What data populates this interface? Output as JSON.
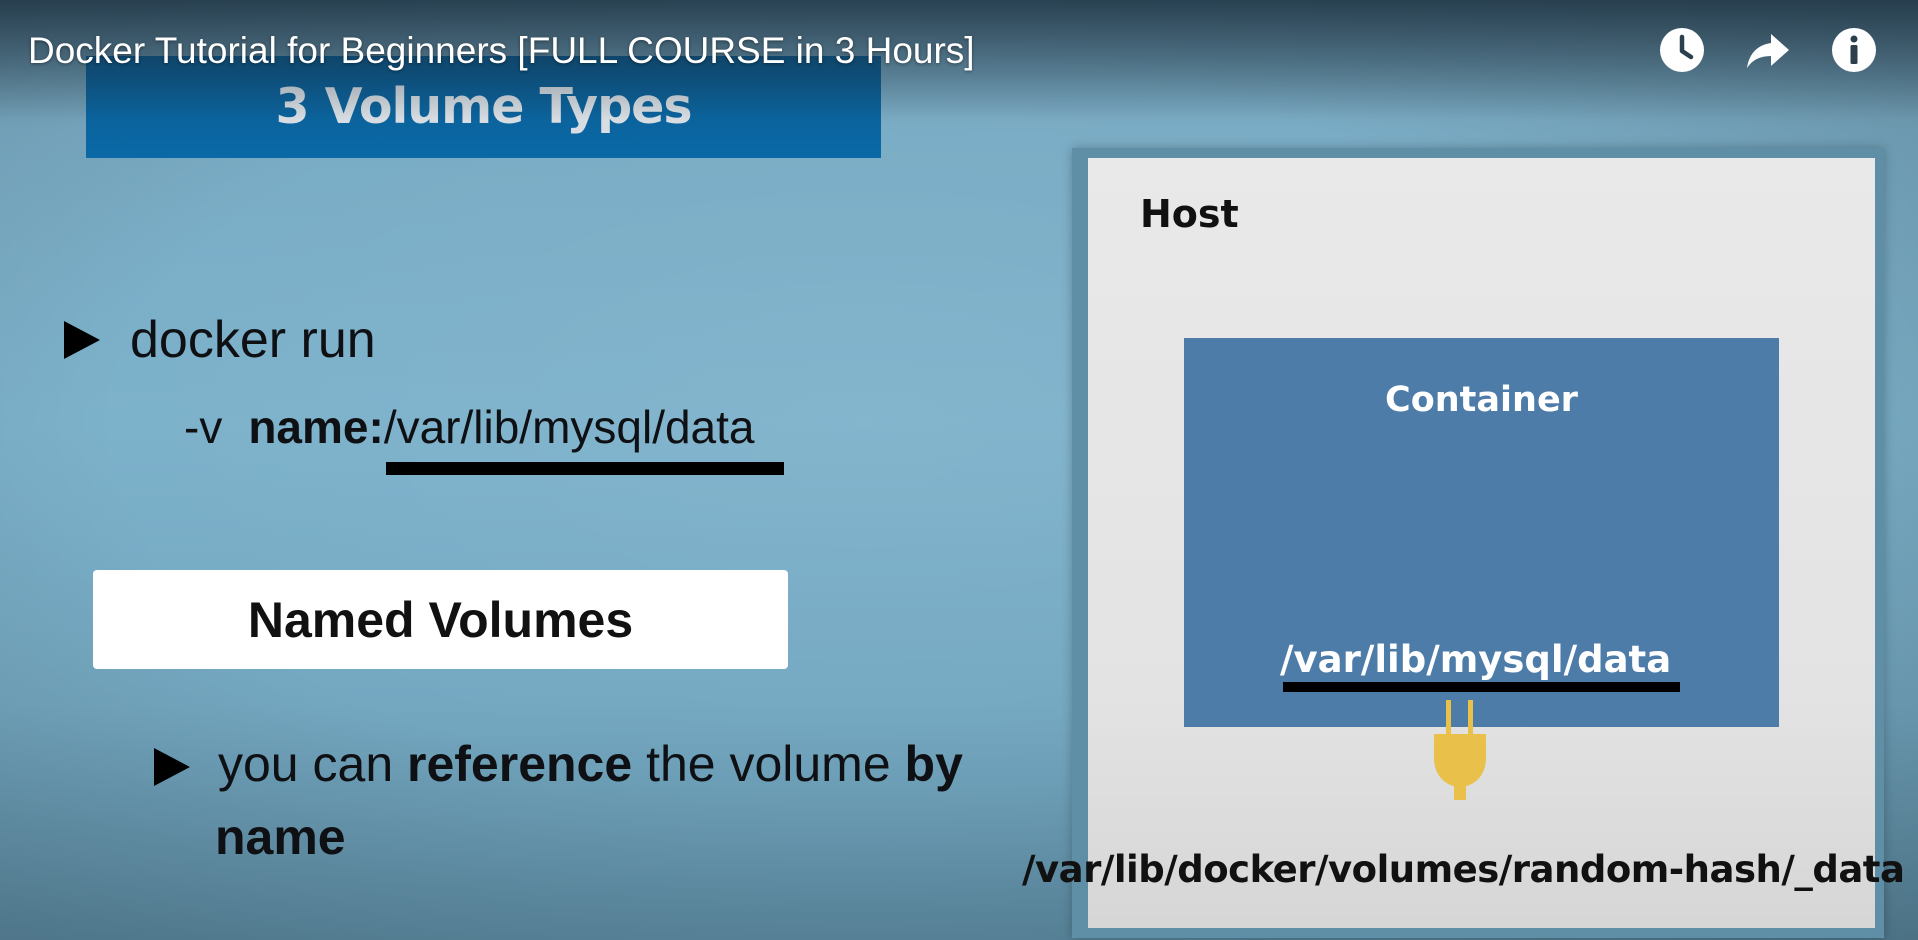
{
  "player": {
    "title": "Docker Tutorial for Beginners [FULL COURSE in 3 Hours]",
    "icons": [
      "clock-icon",
      "share-icon",
      "info-icon"
    ]
  },
  "slide": {
    "heading": "3 Volume Types",
    "command": {
      "bullet_text": "docker run",
      "flag": "-v",
      "volume_name": "name:",
      "path": "/var/lib/mysql/data"
    },
    "named_box_label": "Named Volumes",
    "reference": {
      "part1": "you can ",
      "part2": "reference",
      "part3": " the volume ",
      "part4": "by",
      "line2": "name"
    },
    "diagram": {
      "host_label": "Host",
      "container_label": "Container",
      "container_path": "/var/lib/mysql/data",
      "host_path": "/var/lib/docker/volumes/random-hash/_data"
    }
  },
  "colors": {
    "background": "#7aacc5",
    "heading_bar": "#0a69a6",
    "container": "#4e7ca9",
    "plug": "#e8c04a"
  }
}
